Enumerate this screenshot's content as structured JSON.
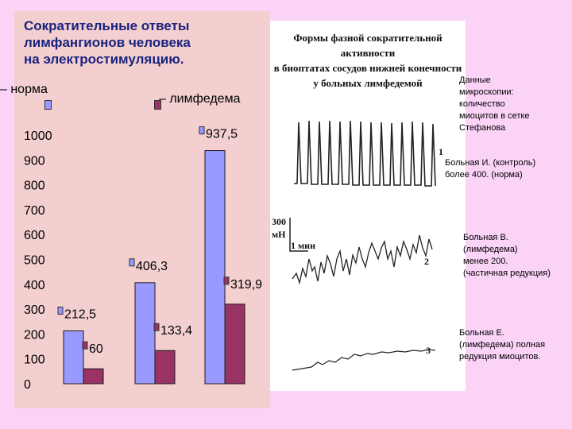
{
  "slide": {
    "title": "Сократительные ответы\nлимфангионов человека\nна электростимуляцию.",
    "legend": {
      "norma": "– норма",
      "lymphedema": "– лимфедема"
    }
  },
  "chart_data": {
    "type": "bar",
    "categories": [
      "",
      "",
      ""
    ],
    "series": [
      {
        "name": "норма",
        "values": [
          212.5,
          406.3,
          937.5
        ],
        "labels": [
          "212,5",
          "406,3",
          "937,5"
        ],
        "color": "#9999ff"
      },
      {
        "name": "лимфедема",
        "values": [
          60,
          133.4,
          319.9
        ],
        "labels": [
          "60",
          "133,4",
          "319,9"
        ],
        "color": "#993366"
      }
    ],
    "yticks": [
      0,
      100,
      200,
      300,
      400,
      500,
      600,
      700,
      800,
      900,
      1000
    ],
    "ylim": [
      0,
      1000
    ]
  },
  "photo": {
    "title": "Формы фазной сократительной активности\nв биоптатах сосудов нижней конечности\nу больных лимфедемой",
    "trace_numbers": [
      "1",
      "2",
      "3"
    ],
    "scale_labels": [
      "300",
      "мН",
      "1 мин"
    ]
  },
  "notes": [
    "Данные\nмикроскопии:\nколичество\nмиоцитов в сетке\nСтефанова",
    "Больная И. (контроль)\nболее 400. (норма)",
    "Больная В.\n(лимфедема)\n  менее 200.\n(частичная редукция)",
    "Больная Е.\n(лимфедема)  полная\nредукция миоцитов."
  ]
}
